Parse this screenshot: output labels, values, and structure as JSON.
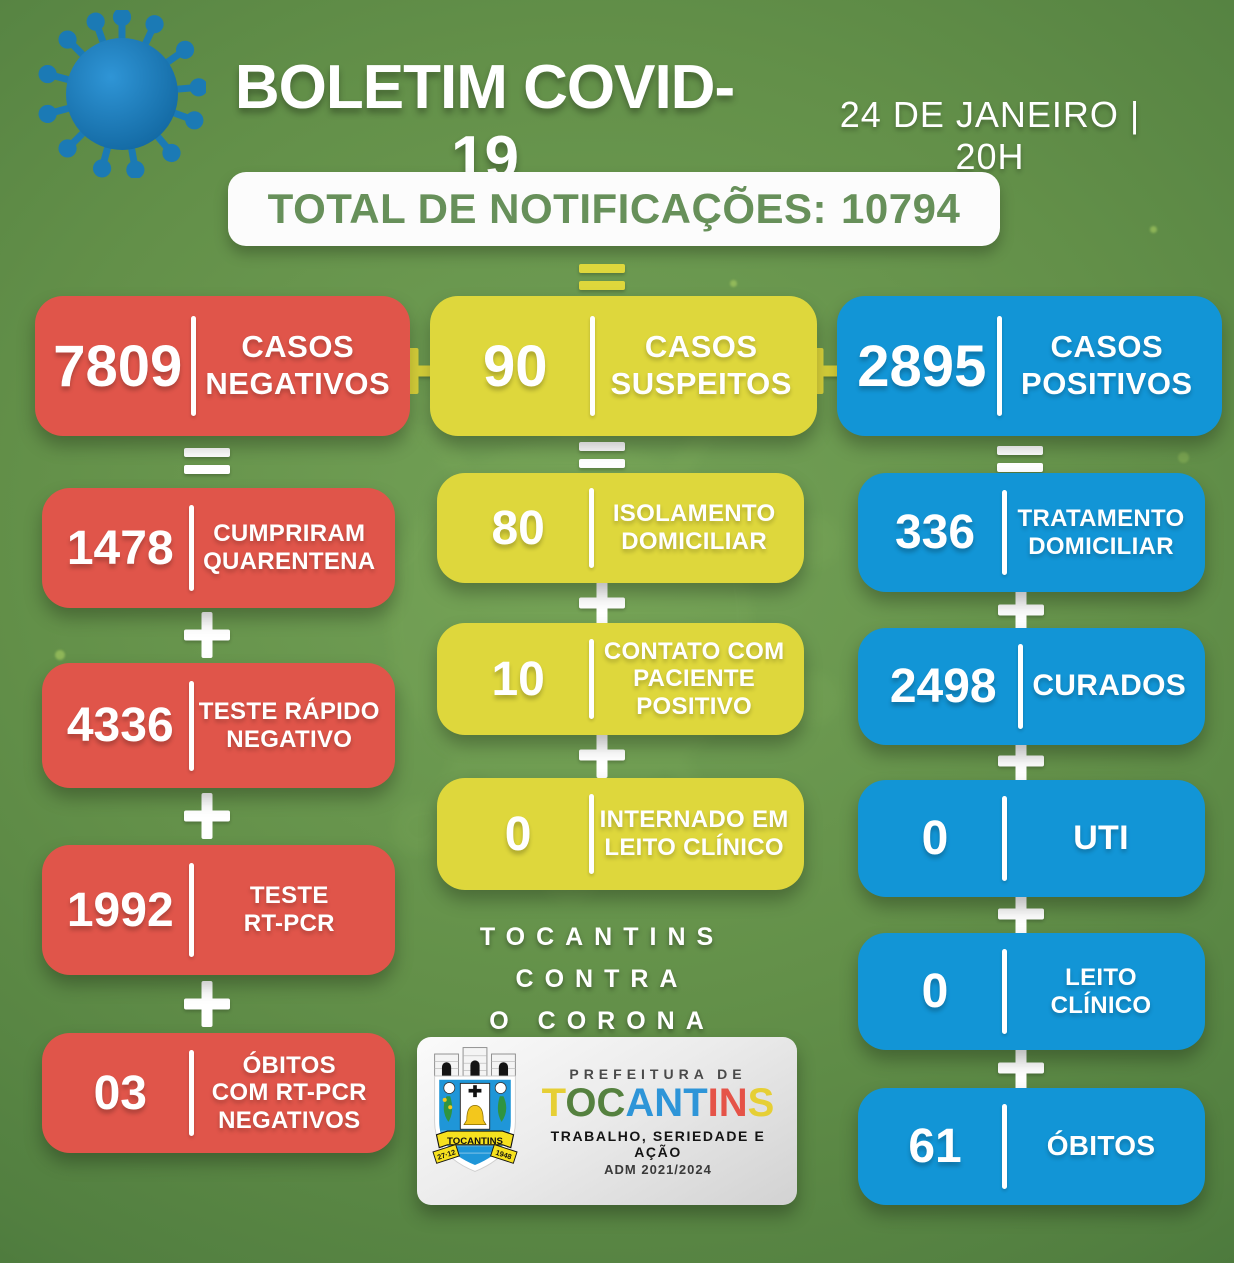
{
  "header": {
    "title": "BOLETIM COVID-19",
    "datetime": "24 DE JANEIRO | 20H"
  },
  "banner": {
    "label": "TOTAL DE NOTIFICAÇÕES:",
    "value": "10794"
  },
  "connectors": {
    "plus_symbol": "+",
    "equals_symbol": "="
  },
  "colors": {
    "red": "#e0554a",
    "yellow": "#ded73c",
    "blue": "#1295d6",
    "background_green": "#639049",
    "banner_text_green": "#67905a"
  },
  "negative_column": {
    "main": {
      "value": "7809",
      "label": "CASOS\nNEGATIVOS"
    },
    "items": [
      {
        "value": "1478",
        "label": "CUMPRIRAM\nQUARENTENA"
      },
      {
        "value": "4336",
        "label": "TESTE RÁPIDO\nNEGATIVO"
      },
      {
        "value": "1992",
        "label": "TESTE\nRT-PCR"
      },
      {
        "value": "03",
        "label": "ÓBITOS\nCOM RT-PCR\nNEGATIVOS"
      }
    ]
  },
  "suspect_column": {
    "main": {
      "value": "90",
      "label": "CASOS\nSUSPEITOS"
    },
    "items": [
      {
        "value": "80",
        "label": "ISOLAMENTO\nDOMICILIAR"
      },
      {
        "value": "10",
        "label": "CONTATO COM\nPACIENTE\nPOSITIVO"
      },
      {
        "value": "0",
        "label": "INTERNADO EM\nLEITO CLÍNICO"
      }
    ]
  },
  "positive_column": {
    "main": {
      "value": "2895",
      "label": "CASOS\nPOSITIVOS"
    },
    "items": [
      {
        "value": "336",
        "label": "TRATAMENTO\nDOMICILIAR"
      },
      {
        "value": "2498",
        "label": "CURADOS"
      },
      {
        "value": "0",
        "label": "UTI"
      },
      {
        "value": "0",
        "label": "LEITO\nCLÍNICO"
      },
      {
        "value": "61",
        "label": "ÓBITOS"
      }
    ]
  },
  "slogan": "TOCANTINS CONTRA\nO CORONA",
  "logo": {
    "prefeitura": "PREFEITURA DE",
    "brand": [
      {
        "ch": "T",
        "color": "#e6cf35"
      },
      {
        "ch": "O",
        "color": "#55813f"
      },
      {
        "ch": "C",
        "color": "#55813f"
      },
      {
        "ch": "A",
        "color": "#2e95d8"
      },
      {
        "ch": "N",
        "color": "#2e95d8"
      },
      {
        "ch": "T",
        "color": "#2e95d8"
      },
      {
        "ch": "I",
        "color": "#e55348"
      },
      {
        "ch": "N",
        "color": "#e55348"
      },
      {
        "ch": "S",
        "color": "#e6cf35"
      }
    ],
    "tagline": "TRABALHO, SERIEDADE E AÇÃO",
    "adm": "ADM 2021/2024",
    "shield_ribbon": "TOCANTINS",
    "shield_left": "27·12",
    "shield_right": "1948"
  }
}
